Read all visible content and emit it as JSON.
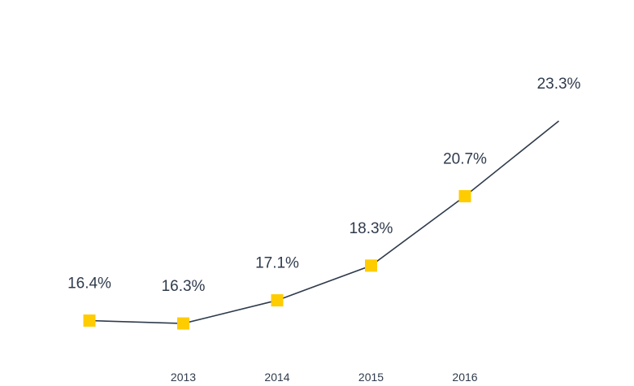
{
  "chart_data": {
    "type": "line",
    "x": [
      "",
      "2013",
      "2014",
      "2015",
      "2016",
      ""
    ],
    "series": [
      {
        "values": [
          16.4,
          16.3,
          17.1,
          18.3,
          20.7,
          23.3
        ],
        "labels": [
          "16.4%",
          "16.3%",
          "17.1%",
          "18.3%",
          "20.7%",
          "23.3%"
        ],
        "color": "#2f3b4c",
        "marker_color": "#ffcc00",
        "marker_shape": "square"
      }
    ],
    "ylim": [
      15,
      24
    ],
    "grid": false,
    "title": "",
    "xlabel": "",
    "ylabel": ""
  }
}
